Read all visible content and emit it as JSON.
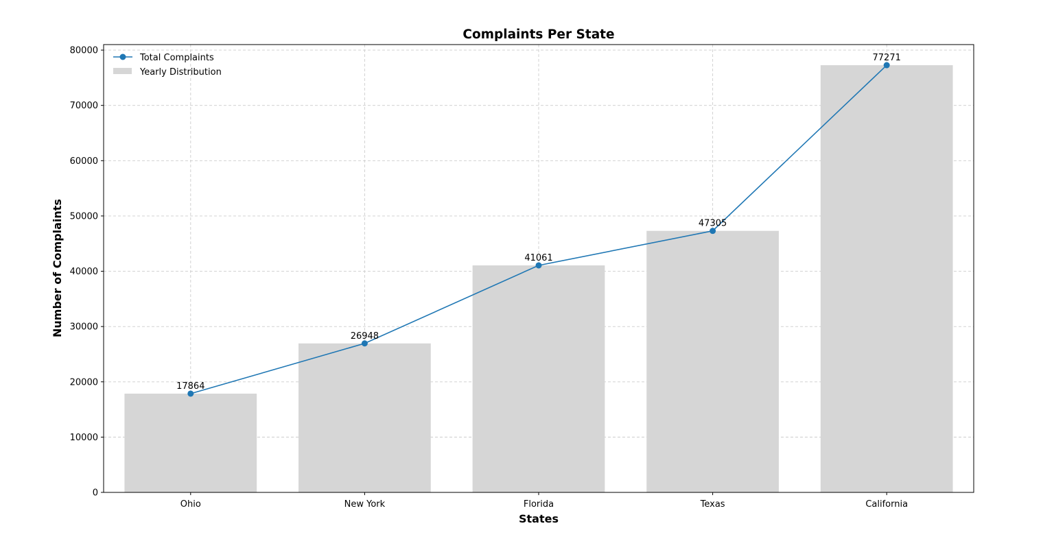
{
  "chart_data": {
    "type": "bar",
    "title": "Complaints Per State",
    "xlabel": "States",
    "ylabel": "Number of Complaints",
    "categories": [
      "Ohio",
      "New York",
      "Florida",
      "Texas",
      "California"
    ],
    "series": [
      {
        "name": "Yearly Distribution",
        "type": "bar",
        "color": "#d6d6d6",
        "values": [
          17864,
          26948,
          41061,
          47305,
          77271
        ]
      },
      {
        "name": "Total Complaints",
        "type": "line",
        "color": "#1f77b4",
        "marker": "circle",
        "values": [
          17864,
          26948,
          41061,
          47305,
          77271
        ]
      }
    ],
    "data_labels": [
      "17864",
      "26948",
      "41061",
      "47305",
      "77271"
    ],
    "ylim": [
      0,
      81000
    ],
    "yticks": [
      0,
      10000,
      20000,
      30000,
      40000,
      50000,
      60000,
      70000,
      80000
    ],
    "ytick_labels": [
      "0",
      "10000",
      "20000",
      "30000",
      "40000",
      "50000",
      "60000",
      "70000",
      "80000"
    ],
    "grid": true,
    "grid_style": "dashed",
    "legend_position": "top-left"
  }
}
